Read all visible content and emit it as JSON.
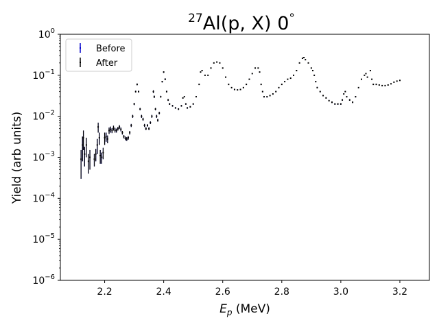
{
  "chart_data": {
    "type": "scatter",
    "title": {
      "prefix_sup": "27",
      "main": "Al(p, X)",
      "angle": "0",
      "angle_unit": "°"
    },
    "xlabel": {
      "sym": "E",
      "sub": "p",
      "unit": " (MeV)"
    },
    "ylabel": "Yield (arb units)",
    "xlim": [
      2.05,
      3.3
    ],
    "ylim": [
      1e-06,
      1
    ],
    "yscale": "log",
    "grid": false,
    "legend_position": "top-left",
    "x_ticks": [
      2.2,
      2.4,
      2.6,
      2.8,
      3.0,
      3.2
    ],
    "x_tick_labels": [
      "2.2",
      "2.4",
      "2.6",
      "2.8",
      "3.0",
      "3.2"
    ],
    "y_ticks": [
      {
        "value": 1,
        "base": "10",
        "exp": "0"
      },
      {
        "value": 0.1,
        "base": "10",
        "exp": "−1"
      },
      {
        "value": 0.01,
        "base": "10",
        "exp": "−2"
      },
      {
        "value": 0.001,
        "base": "10",
        "exp": "−3"
      },
      {
        "value": 0.0001,
        "base": "10",
        "exp": "−4"
      },
      {
        "value": 1e-05,
        "base": "10",
        "exp": "−5"
      },
      {
        "value": 1e-06,
        "base": "10",
        "exp": "−6"
      }
    ],
    "series": [
      {
        "name": "Before",
        "color": "#0000cc"
      },
      {
        "name": "After",
        "color": "#000000"
      }
    ],
    "points": [
      [
        2.12,
        0.0009,
        0.0006
      ],
      [
        2.125,
        0.002,
        0.0012
      ],
      [
        2.128,
        0.003,
        0.0015
      ],
      [
        2.132,
        0.0012,
        0.0006
      ],
      [
        2.138,
        0.002,
        0.001
      ],
      [
        2.145,
        0.0008,
        0.0004
      ],
      [
        2.15,
        0.001,
        0.0005
      ],
      [
        2.165,
        0.0009,
        0.0003
      ],
      [
        2.17,
        0.0012,
        0.0004
      ],
      [
        2.175,
        0.002,
        0.0008
      ],
      [
        2.178,
        0.0055,
        0.0015
      ],
      [
        2.182,
        0.003,
        0.001
      ],
      [
        2.185,
        0.0011,
        0.0004
      ],
      [
        2.19,
        0.001,
        0.0003
      ],
      [
        2.195,
        0.0013,
        0.0004
      ],
      [
        2.2,
        0.003,
        0.001
      ],
      [
        2.205,
        0.0032,
        0.0008
      ],
      [
        2.21,
        0.0028,
        0.0006
      ],
      [
        2.215,
        0.0045,
        0.0008
      ],
      [
        2.22,
        0.0048,
        0.0008
      ],
      [
        2.225,
        0.0045,
        0.0006
      ],
      [
        2.23,
        0.0052,
        0.0007
      ],
      [
        2.235,
        0.0046,
        0.0006
      ],
      [
        2.24,
        0.0045,
        0.0005
      ],
      [
        2.245,
        0.005,
        0.0005
      ],
      [
        2.25,
        0.0055,
        0.0006
      ],
      [
        2.255,
        0.0048,
        0.0005
      ],
      [
        2.26,
        0.004,
        0.0004
      ],
      [
        2.265,
        0.0032,
        0.0003
      ],
      [
        2.27,
        0.0029,
        0.0003
      ],
      [
        2.275,
        0.0028,
        0.0003
      ],
      [
        2.28,
        0.003,
        0.0003
      ],
      [
        2.285,
        0.004,
        0.0004
      ],
      [
        2.29,
        0.006,
        0.0005
      ],
      [
        2.295,
        0.01,
        0.0008
      ],
      [
        2.3,
        0.02,
        0.0012
      ],
      [
        2.305,
        0.04,
        0.002
      ],
      [
        2.31,
        0.06,
        0.003
      ],
      [
        2.315,
        0.04,
        0.002
      ],
      [
        2.32,
        0.015,
        0.001
      ],
      [
        2.325,
        0.01,
        0.0008
      ],
      [
        2.33,
        0.0085,
        0.0007
      ],
      [
        2.335,
        0.006,
        0.0005
      ],
      [
        2.34,
        0.005,
        0.0004
      ],
      [
        2.345,
        0.006,
        0.0004
      ],
      [
        2.35,
        0.005,
        0.0004
      ],
      [
        2.355,
        0.007,
        0.0005
      ],
      [
        2.36,
        0.01,
        0.0008
      ],
      [
        2.365,
        0.04,
        0.003
      ],
      [
        2.368,
        0.03,
        0.002
      ],
      [
        2.372,
        0.015,
        0.001
      ],
      [
        2.376,
        0.01,
        0.0008
      ],
      [
        2.38,
        0.008,
        0.0006
      ],
      [
        2.385,
        0.012,
        0.0008
      ],
      [
        2.39,
        0.03,
        0.0015
      ],
      [
        2.395,
        0.07,
        0.003
      ],
      [
        2.4,
        0.12,
        0.005
      ],
      [
        2.405,
        0.08,
        0.004
      ],
      [
        2.41,
        0.04,
        0.002
      ],
      [
        2.415,
        0.025,
        0.0012
      ],
      [
        2.42,
        0.02,
        0.001
      ],
      [
        2.43,
        0.018,
        0.0008
      ],
      [
        2.44,
        0.016,
        0.0007
      ],
      [
        2.45,
        0.015,
        0.0007
      ],
      [
        2.46,
        0.018,
        0.0008
      ],
      [
        2.465,
        0.028,
        0.001
      ],
      [
        2.47,
        0.03,
        0.001
      ],
      [
        2.475,
        0.02,
        0.0008
      ],
      [
        2.48,
        0.016,
        0.0007
      ],
      [
        2.49,
        0.017,
        0.0007
      ],
      [
        2.5,
        0.02,
        0.0008
      ],
      [
        2.51,
        0.03,
        0.001
      ],
      [
        2.52,
        0.06,
        0.002
      ],
      [
        2.525,
        0.12,
        0.004
      ],
      [
        2.53,
        0.13,
        0.004
      ],
      [
        2.54,
        0.1,
        0.003
      ],
      [
        2.55,
        0.1,
        0.003
      ],
      [
        2.56,
        0.15,
        0.004
      ],
      [
        2.57,
        0.2,
        0.005
      ],
      [
        2.58,
        0.21,
        0.005
      ],
      [
        2.59,
        0.2,
        0.005
      ],
      [
        2.6,
        0.15,
        0.004
      ],
      [
        2.61,
        0.09,
        0.0025
      ],
      [
        2.62,
        0.06,
        0.002
      ],
      [
        2.63,
        0.05,
        0.0015
      ],
      [
        2.64,
        0.045,
        0.0015
      ],
      [
        2.65,
        0.044,
        0.0014
      ],
      [
        2.66,
        0.045,
        0.0014
      ],
      [
        2.67,
        0.05,
        0.0015
      ],
      [
        2.68,
        0.06,
        0.002
      ],
      [
        2.69,
        0.08,
        0.0025
      ],
      [
        2.7,
        0.11,
        0.003
      ],
      [
        2.71,
        0.15,
        0.004
      ],
      [
        2.72,
        0.15,
        0.004
      ],
      [
        2.725,
        0.12,
        0.0035
      ],
      [
        2.73,
        0.06,
        0.002
      ],
      [
        2.735,
        0.04,
        0.0015
      ],
      [
        2.74,
        0.03,
        0.0012
      ],
      [
        2.75,
        0.03,
        0.0012
      ],
      [
        2.76,
        0.032,
        0.0012
      ],
      [
        2.77,
        0.035,
        0.0012
      ],
      [
        2.78,
        0.04,
        0.0014
      ],
      [
        2.79,
        0.05,
        0.0016
      ],
      [
        2.8,
        0.06,
        0.0018
      ],
      [
        2.81,
        0.07,
        0.002
      ],
      [
        2.82,
        0.08,
        0.0022
      ],
      [
        2.83,
        0.085,
        0.0024
      ],
      [
        2.84,
        0.1,
        0.0028
      ],
      [
        2.85,
        0.13,
        0.0035
      ],
      [
        2.86,
        0.2,
        0.005
      ],
      [
        2.87,
        0.26,
        0.006
      ],
      [
        2.875,
        0.27,
        0.006
      ],
      [
        2.88,
        0.24,
        0.0055
      ],
      [
        2.89,
        0.2,
        0.005
      ],
      [
        2.9,
        0.15,
        0.004
      ],
      [
        2.905,
        0.13,
        0.0035
      ],
      [
        2.91,
        0.1,
        0.003
      ],
      [
        2.915,
        0.07,
        0.0025
      ],
      [
        2.92,
        0.05,
        0.002
      ],
      [
        2.93,
        0.04,
        0.0015
      ],
      [
        2.94,
        0.032,
        0.0012
      ],
      [
        2.95,
        0.028,
        0.0011
      ],
      [
        2.96,
        0.024,
        0.001
      ],
      [
        2.97,
        0.022,
        0.001
      ],
      [
        2.98,
        0.02,
        0.0009
      ],
      [
        2.99,
        0.02,
        0.0009
      ],
      [
        3.0,
        0.02,
        0.0009
      ],
      [
        3.005,
        0.025,
        0.001
      ],
      [
        3.01,
        0.035,
        0.0012
      ],
      [
        3.015,
        0.04,
        0.0013
      ],
      [
        3.02,
        0.03,
        0.0011
      ],
      [
        3.03,
        0.025,
        0.001
      ],
      [
        3.04,
        0.022,
        0.001
      ],
      [
        3.05,
        0.03,
        0.0011
      ],
      [
        3.06,
        0.05,
        0.0015
      ],
      [
        3.07,
        0.08,
        0.002
      ],
      [
        3.08,
        0.1,
        0.0025
      ],
      [
        3.085,
        0.11,
        0.0028
      ],
      [
        3.09,
        0.09,
        0.0025
      ],
      [
        3.1,
        0.13,
        0.003
      ],
      [
        3.105,
        0.08,
        0.0022
      ],
      [
        3.11,
        0.06,
        0.0018
      ],
      [
        3.12,
        0.06,
        0.0018
      ],
      [
        3.13,
        0.058,
        0.0017
      ],
      [
        3.14,
        0.056,
        0.0017
      ],
      [
        3.15,
        0.056,
        0.0017
      ],
      [
        3.16,
        0.058,
        0.0017
      ],
      [
        3.17,
        0.062,
        0.0018
      ],
      [
        3.18,
        0.068,
        0.002
      ],
      [
        3.19,
        0.072,
        0.002
      ],
      [
        3.2,
        0.075,
        0.002
      ]
    ]
  }
}
